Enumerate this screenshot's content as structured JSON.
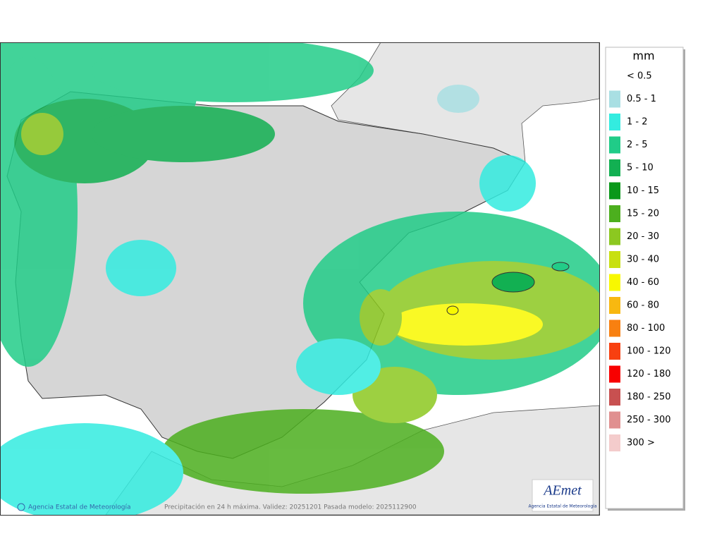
{
  "legend": {
    "title": "mm",
    "items": [
      {
        "label": "< 0.5"
      },
      {
        "label": "0.5 - 1",
        "color": "#a9dfe3"
      },
      {
        "label": "1 - 2",
        "color": "#33ece0"
      },
      {
        "label": "2 - 5",
        "color": "#20cc88"
      },
      {
        "label": "5 - 10",
        "color": "#12b052"
      },
      {
        "label": "10 - 15",
        "color": "#0a981a"
      },
      {
        "label": "15 - 20",
        "color": "#4caf1e"
      },
      {
        "label": "20 - 30",
        "color": "#8cc820"
      },
      {
        "label": "30 - 40",
        "color": "#c8e010"
      },
      {
        "label": "40 - 60",
        "color": "#f8f800"
      },
      {
        "label": "60 - 80",
        "color": "#f8b810"
      },
      {
        "label": "80 - 100",
        "color": "#f88010"
      },
      {
        "label": "100 - 120",
        "color": "#f84010"
      },
      {
        "label": "120 - 180",
        "color": "#f80000"
      },
      {
        "label": "180 - 250",
        "color": "#c85050"
      },
      {
        "label": "250 - 300",
        "color": "#e09090"
      },
      {
        "label": "300 >",
        "color": "#f4cccc"
      }
    ]
  },
  "footer": {
    "copyright": "Agencia Estatal de Meteorología",
    "caption": "Precipitación en 24 h máxima. Validez: 20251201 Pasada modelo: 2025112900"
  },
  "logo": {
    "name": "AEmet",
    "subtitle": "Agencia Estatal de Meteorología"
  }
}
